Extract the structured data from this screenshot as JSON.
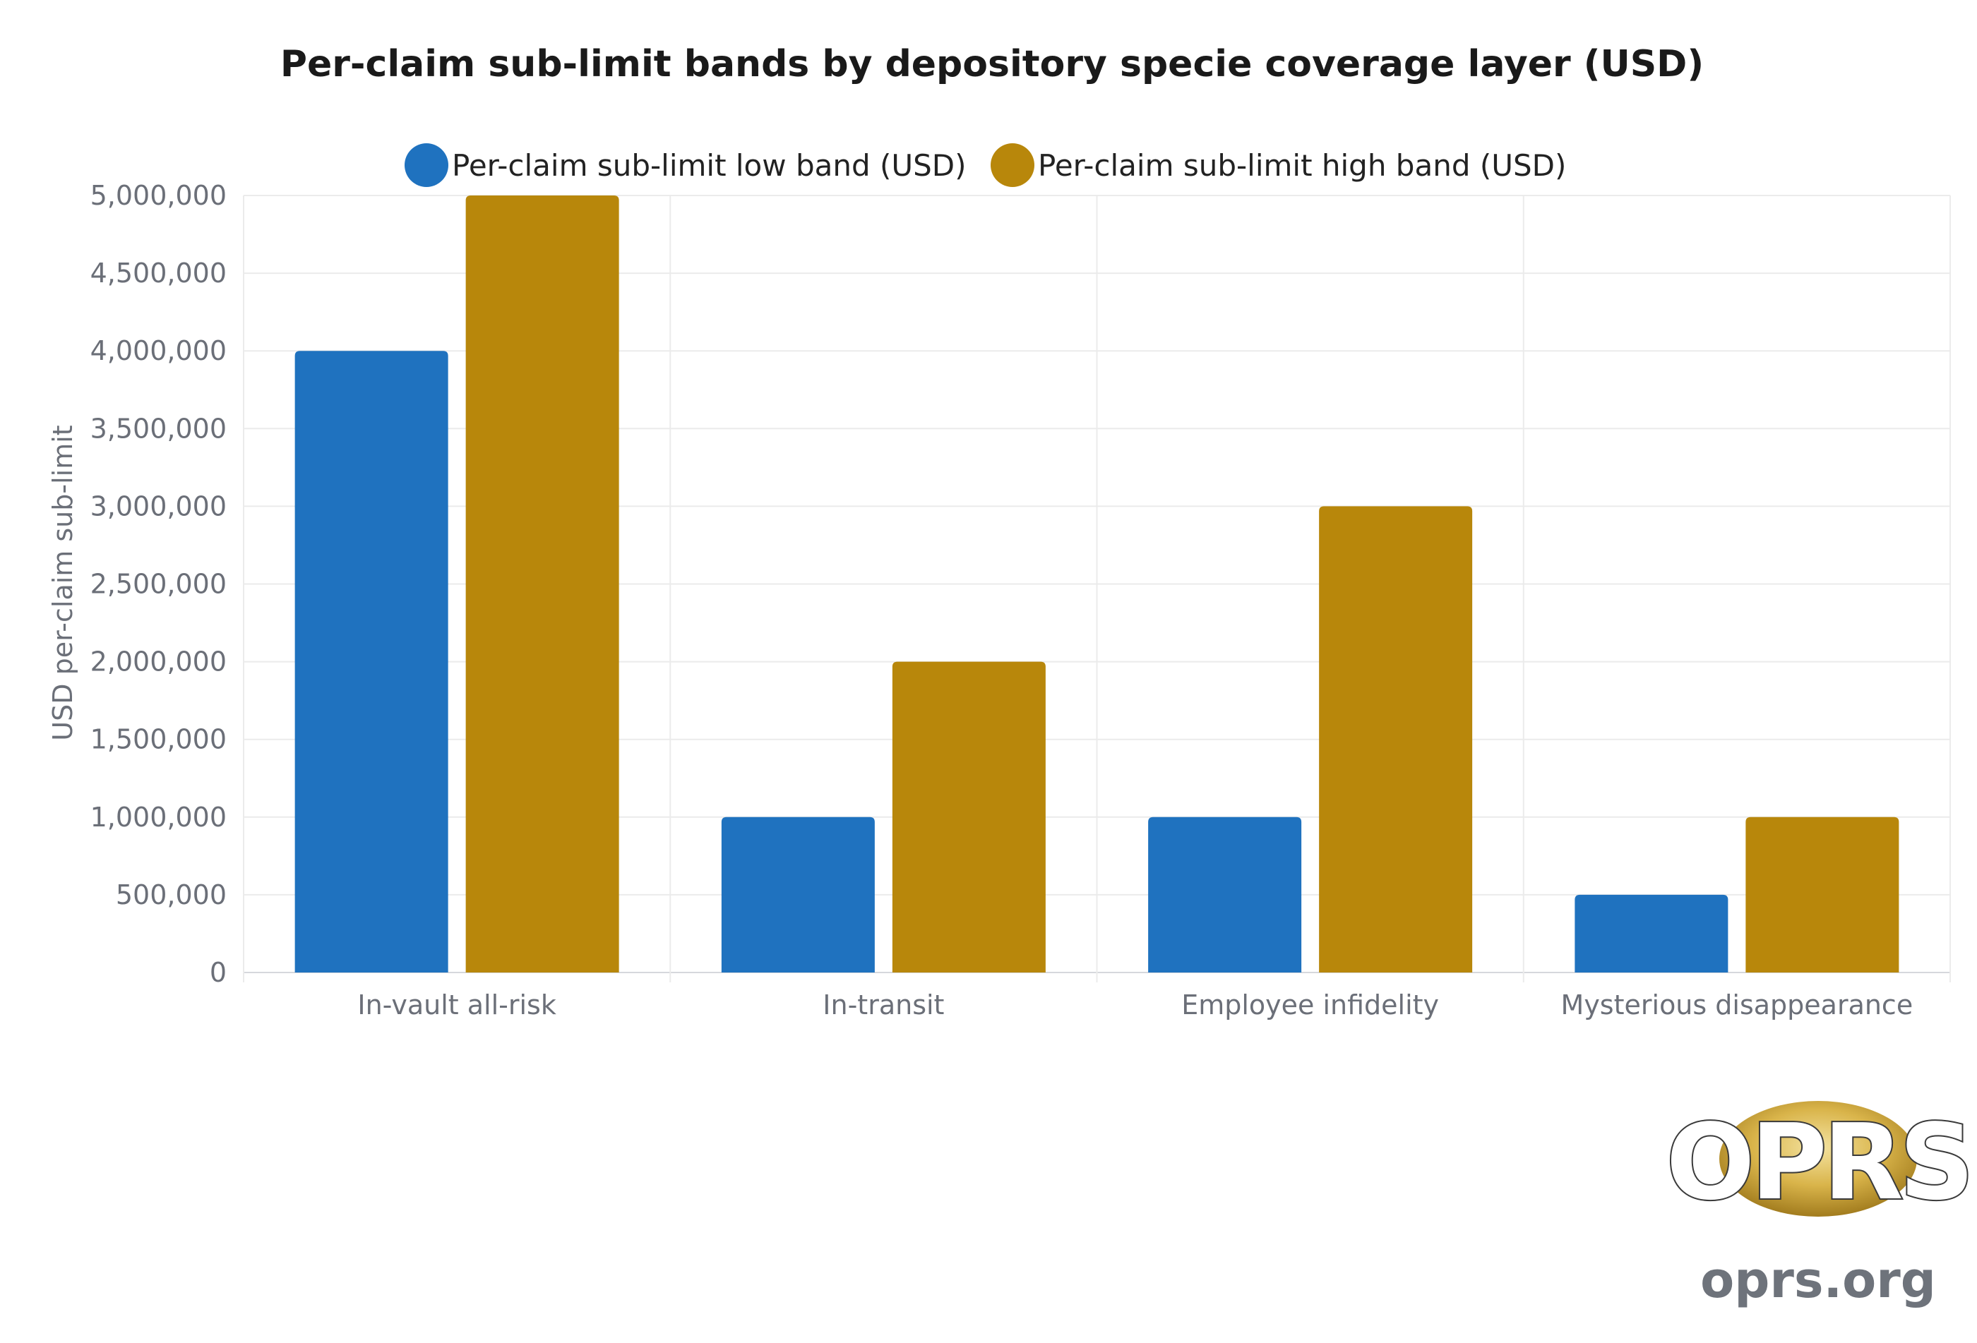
{
  "chart_data": {
    "type": "bar",
    "title": "Per-claim sub-limit bands by depository specie coverage layer (USD)",
    "xlabel": "",
    "ylabel": "USD per-claim sub-limit",
    "categories": [
      "In-vault all-risk",
      "In-transit",
      "Employee infidelity",
      "Mysterious disappearance"
    ],
    "series": [
      {
        "name": "Per-claim sub-limit low band (USD)",
        "color": "#1f72bf",
        "values": [
          4000000,
          1000000,
          1000000,
          500000
        ]
      },
      {
        "name": "Per-claim sub-limit high band (USD)",
        "color": "#b8870b",
        "values": [
          5000000,
          2000000,
          3000000,
          1000000
        ]
      }
    ],
    "ylim": [
      0,
      5000000
    ],
    "yticks": [
      0,
      500000,
      1000000,
      1500000,
      2000000,
      2500000,
      3000000,
      3500000,
      4000000,
      4500000,
      5000000
    ],
    "ytick_labels": [
      "0",
      "500,000",
      "1,000,000",
      "1,500,000",
      "2,000,000",
      "2,500,000",
      "3,000,000",
      "3,500,000",
      "4,000,000",
      "4,500,000",
      "5,000,000"
    ],
    "grid": true,
    "legend_position": "top-center"
  },
  "branding": {
    "logo_text": "OPRS",
    "url": "oprs.org",
    "logo_color": "#c9a227"
  }
}
